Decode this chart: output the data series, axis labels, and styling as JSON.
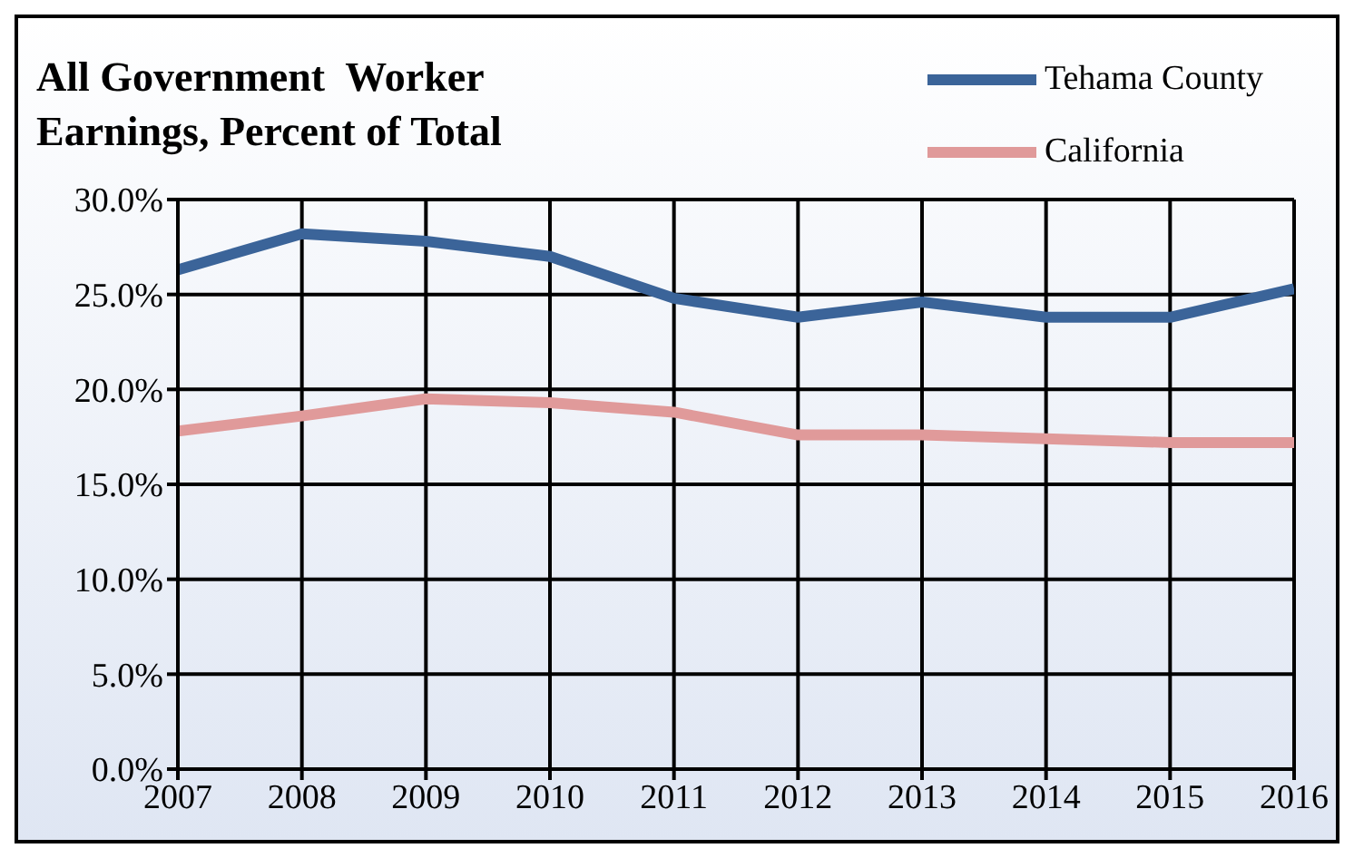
{
  "chart_data": {
    "type": "line",
    "title": "All Government  Worker Earnings, Percent of Total",
    "x": [
      2007,
      2008,
      2009,
      2010,
      2011,
      2012,
      2013,
      2014,
      2015,
      2016
    ],
    "xlim": [
      2007,
      2016
    ],
    "xticks": [
      2007,
      2008,
      2009,
      2010,
      2011,
      2012,
      2013,
      2014,
      2015,
      2016
    ],
    "ylim": [
      0,
      30
    ],
    "yticks": [
      {
        "value": 0,
        "label": "0.0%"
      },
      {
        "value": 5,
        "label": "5.0%"
      },
      {
        "value": 10,
        "label": "10.0%"
      },
      {
        "value": 15,
        "label": "15.0%"
      },
      {
        "value": 20,
        "label": "20.0%"
      },
      {
        "value": 25,
        "label": "25.0%"
      },
      {
        "value": 30,
        "label": "30.0%"
      }
    ],
    "grid": true,
    "legend": "top right",
    "marker": "none",
    "series": [
      {
        "name": "Tehama County",
        "color": "#3b6499",
        "values": [
          26.3,
          28.2,
          27.8,
          27.0,
          24.8,
          23.8,
          24.6,
          23.8,
          23.8,
          25.3
        ]
      },
      {
        "name": "California",
        "color": "#e09a9a",
        "values": [
          17.8,
          18.6,
          19.5,
          19.3,
          18.8,
          17.6,
          17.6,
          17.4,
          17.2,
          17.2
        ]
      }
    ]
  }
}
